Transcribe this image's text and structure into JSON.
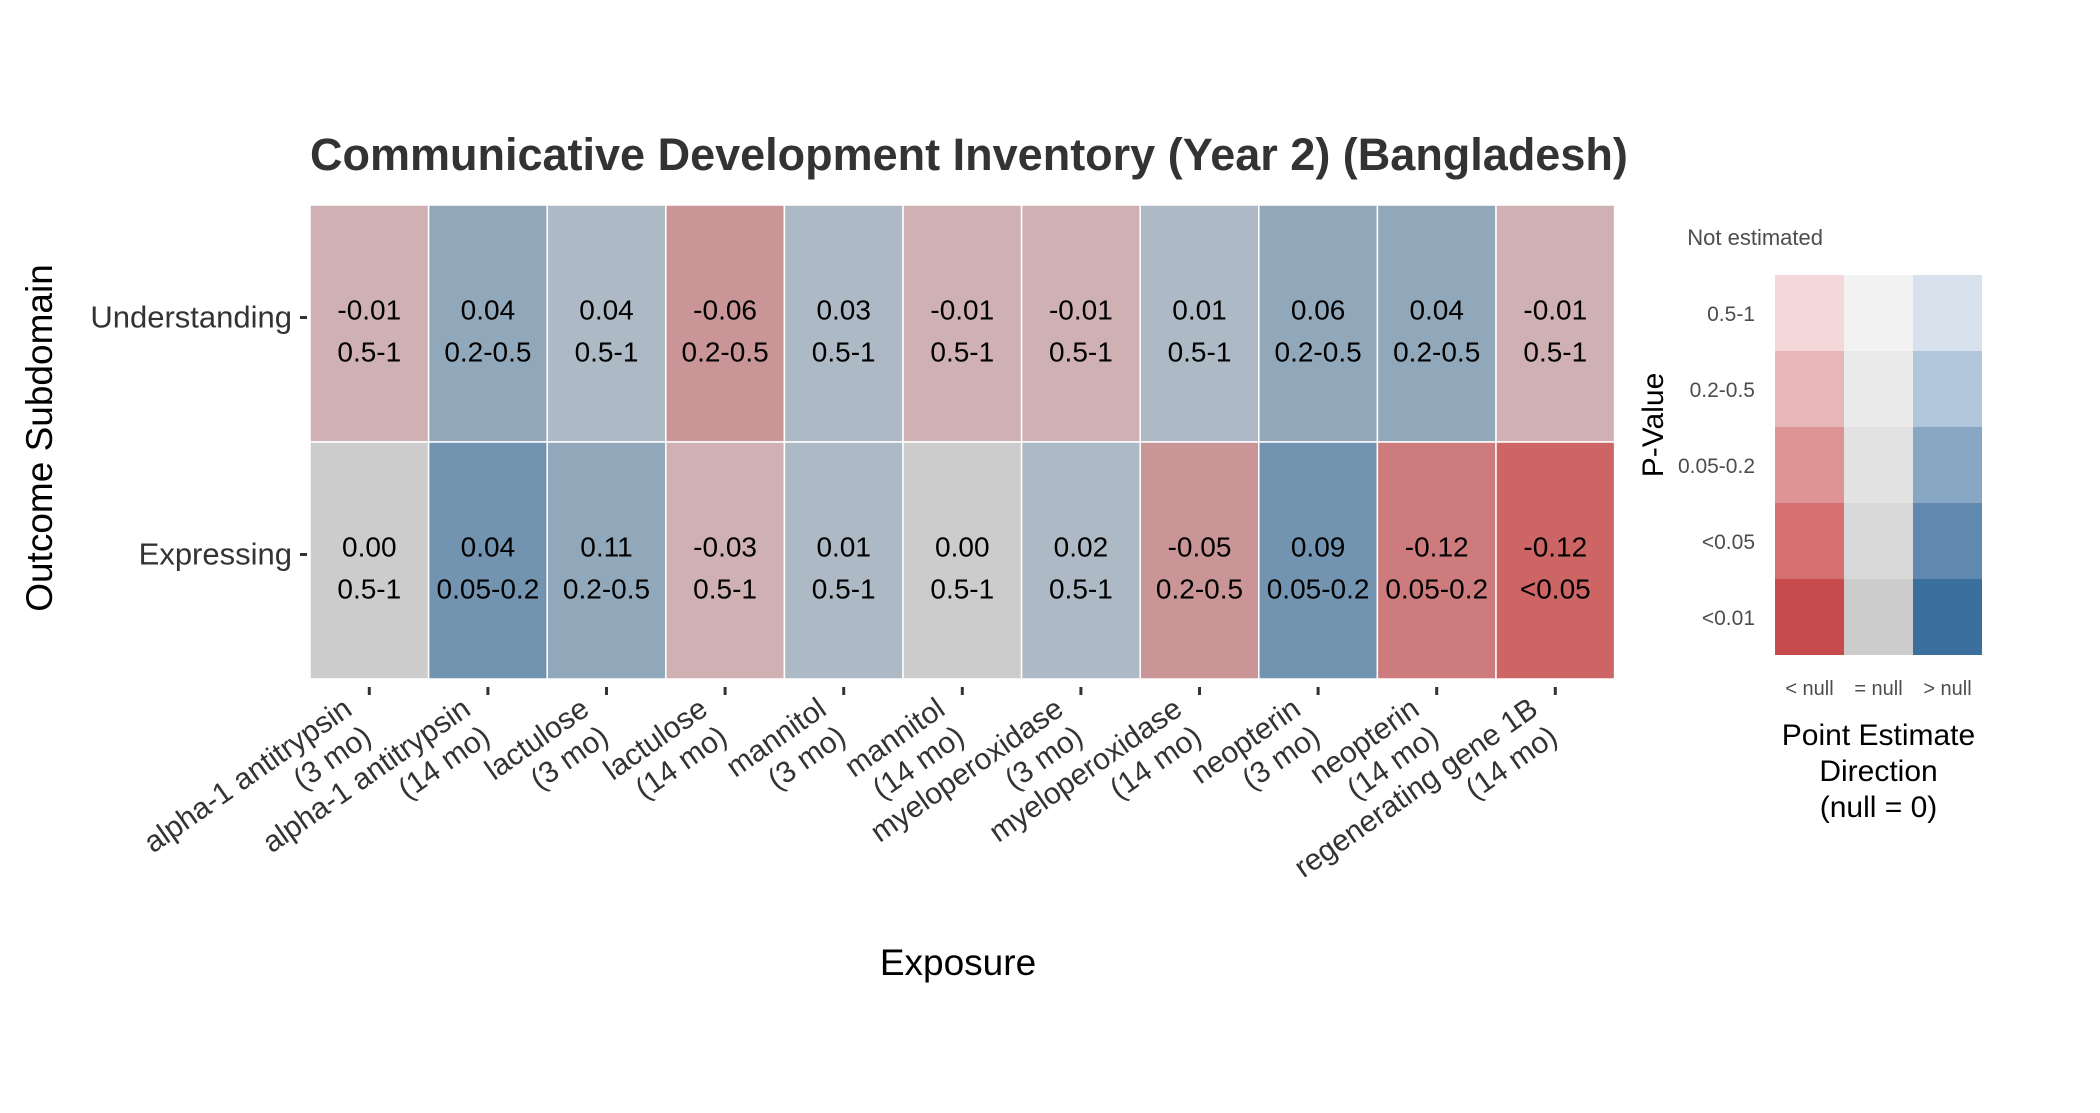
{
  "chart_data": {
    "type": "heatmap",
    "title": "Communicative Development Inventory (Year 2) (Bangladesh)",
    "xlabel": "Exposure",
    "ylabel": "Outcome Subdomain",
    "x_categories": [
      [
        "alpha-1 antitrypsin",
        "(3 mo)"
      ],
      [
        "alpha-1 antitrypsin",
        "(14 mo)"
      ],
      [
        "lactulose",
        "(3 mo)"
      ],
      [
        "lactulose",
        "(14 mo)"
      ],
      [
        "mannitol",
        "(3 mo)"
      ],
      [
        "mannitol",
        "(14 mo)"
      ],
      [
        "myeloperoxidase",
        "(3 mo)"
      ],
      [
        "myeloperoxidase",
        "(14 mo)"
      ],
      [
        "neopterin",
        "(3 mo)"
      ],
      [
        "neopterin",
        "(14 mo)"
      ],
      [
        "regenerating gene 1B",
        "(14 mo)"
      ]
    ],
    "y_categories": [
      "Understanding",
      "Expressing"
    ],
    "cells": [
      {
        "row": 0,
        "col": 0,
        "estimate": "-0.01",
        "pvalue": "0.5-1",
        "color": "#cfb1b3"
      },
      {
        "row": 0,
        "col": 1,
        "estimate": "0.04",
        "pvalue": "0.2-0.5",
        "color": "#91a8bb"
      },
      {
        "row": 0,
        "col": 2,
        "estimate": "0.04",
        "pvalue": "0.5-1",
        "color": "#adb9c4"
      },
      {
        "row": 0,
        "col": 3,
        "estimate": "-0.06",
        "pvalue": "0.2-0.5",
        "color": "#ca9597"
      },
      {
        "row": 0,
        "col": 4,
        "estimate": "0.03",
        "pvalue": "0.5-1",
        "color": "#adb9c4"
      },
      {
        "row": 0,
        "col": 5,
        "estimate": "-0.01",
        "pvalue": "0.5-1",
        "color": "#cfb1b3"
      },
      {
        "row": 0,
        "col": 6,
        "estimate": "-0.01",
        "pvalue": "0.5-1",
        "color": "#cfb1b3"
      },
      {
        "row": 0,
        "col": 7,
        "estimate": "0.01",
        "pvalue": "0.5-1",
        "color": "#adb9c4"
      },
      {
        "row": 0,
        "col": 8,
        "estimate": "0.06",
        "pvalue": "0.2-0.5",
        "color": "#91a8bb"
      },
      {
        "row": 0,
        "col": 9,
        "estimate": "0.04",
        "pvalue": "0.2-0.5",
        "color": "#91a8bb"
      },
      {
        "row": 0,
        "col": 10,
        "estimate": "-0.01",
        "pvalue": "0.5-1",
        "color": "#cfb1b3"
      },
      {
        "row": 1,
        "col": 0,
        "estimate": "0.00",
        "pvalue": "0.5-1",
        "color": "#cccccc"
      },
      {
        "row": 1,
        "col": 1,
        "estimate": "0.04",
        "pvalue": "0.05-0.2",
        "color": "#7394b0"
      },
      {
        "row": 1,
        "col": 2,
        "estimate": "0.11",
        "pvalue": "0.2-0.5",
        "color": "#91a8bb"
      },
      {
        "row": 1,
        "col": 3,
        "estimate": "-0.03",
        "pvalue": "0.5-1",
        "color": "#cfb1b3"
      },
      {
        "row": 1,
        "col": 4,
        "estimate": "0.01",
        "pvalue": "0.5-1",
        "color": "#adb9c4"
      },
      {
        "row": 1,
        "col": 5,
        "estimate": "0.00",
        "pvalue": "0.5-1",
        "color": "#cccccc"
      },
      {
        "row": 1,
        "col": 6,
        "estimate": "0.02",
        "pvalue": "0.5-1",
        "color": "#adb9c4"
      },
      {
        "row": 1,
        "col": 7,
        "estimate": "-0.05",
        "pvalue": "0.2-0.5",
        "color": "#ca9597"
      },
      {
        "row": 1,
        "col": 8,
        "estimate": "0.09",
        "pvalue": "0.05-0.2",
        "color": "#7394b0"
      },
      {
        "row": 1,
        "col": 9,
        "estimate": "-0.12",
        "pvalue": "0.05-0.2",
        "color": "#cd7b7d"
      },
      {
        "row": 1,
        "col": 10,
        "estimate": "-0.12",
        "pvalue": "<0.05",
        "color": "#cd6565"
      }
    ],
    "legend": {
      "title": "P-Value",
      "not_estimated_label": "Not estimated",
      "pvalue_levels": [
        "0.5-1",
        "0.2-0.5",
        "0.05-0.2",
        "<0.05",
        "<0.01"
      ],
      "direction_labels": [
        "< null",
        "= null",
        "> null"
      ],
      "direction_title": [
        "Point Estimate",
        "Direction",
        "(null = 0)"
      ],
      "colors": [
        [
          "#f4d7d9",
          "#f2f2f2",
          "#d8e2ec"
        ],
        [
          "#e8b7b9",
          "#eaeaea",
          "#b1c6da"
        ],
        [
          "#de9394",
          "#e2e2e2",
          "#88a7c5"
        ],
        [
          "#d47170",
          "#d9d9d9",
          "#6189b0"
        ],
        [
          "#c74b4c",
          "#cccccc",
          "#3a6f9e"
        ]
      ]
    }
  }
}
